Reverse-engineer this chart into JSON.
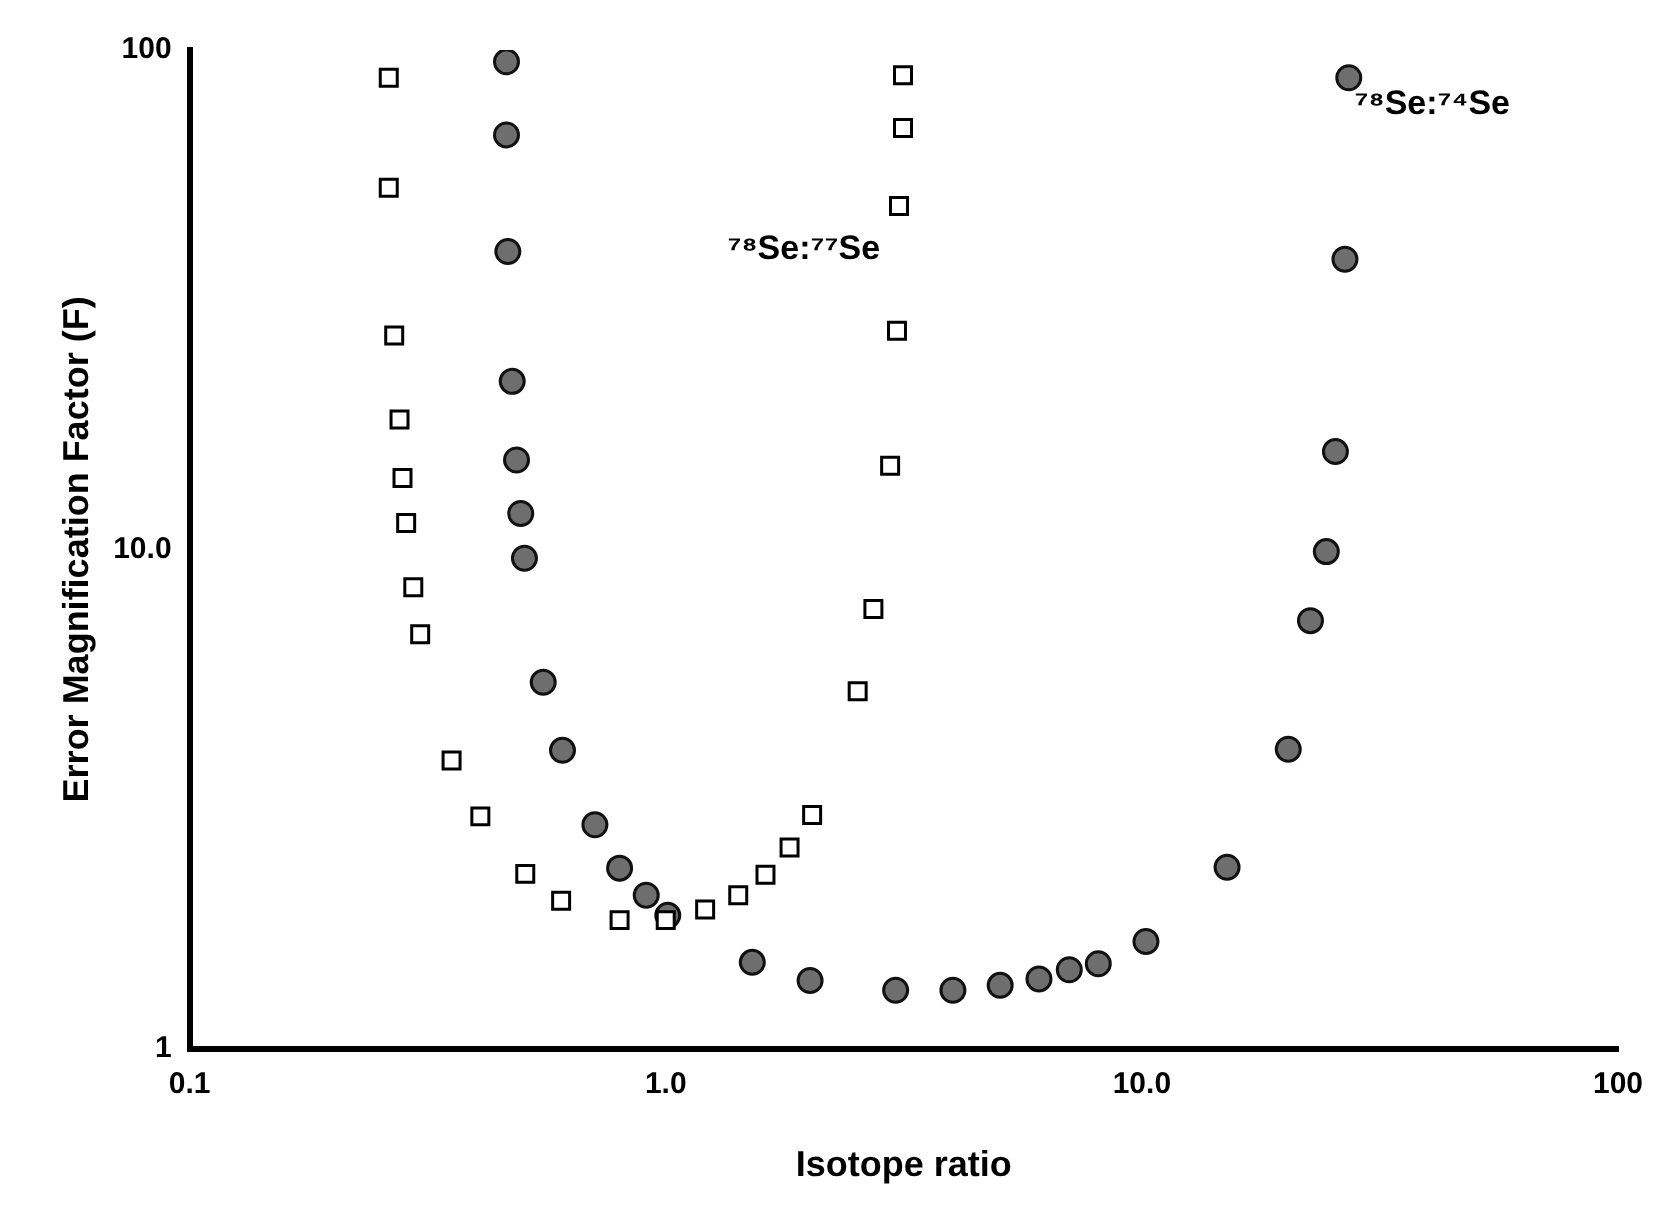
{
  "chart_data": {
    "type": "scatter",
    "xlabel": "Isotope ratio",
    "ylabel": "Error Magnification Factor (F)",
    "log": "xy",
    "grid": false,
    "legend": false,
    "xlim": [
      0.1,
      100
    ],
    "xticks": [
      {
        "value": 0.1,
        "label": "0.1"
      },
      {
        "value": 1,
        "label": "1.0"
      },
      {
        "value": 10,
        "label": "10.0"
      },
      100
    ],
    "ylim": [
      1,
      100
    ],
    "yticks": [
      1,
      {
        "value": 10,
        "label": "10.0"
      },
      100
    ],
    "series": [
      {
        "color": "#000000",
        "marker": "square",
        "x": [
          0.262,
          0.262,
          0.269,
          0.276,
          0.28,
          0.285,
          0.295,
          0.305,
          0.355,
          0.408,
          0.507,
          0.603,
          0.8,
          1.0,
          1.21,
          1.42,
          1.62,
          1.82,
          2.03,
          2.53,
          2.73,
          2.96,
          3.06,
          3.09,
          3.15,
          3.15
        ],
        "values": [
          88,
          53,
          26.8,
          18.2,
          13.9,
          11.3,
          8.4,
          6.76,
          3.78,
          2.92,
          2.24,
          1.98,
          1.81,
          1.81,
          1.9,
          2.03,
          2.23,
          2.53,
          2.94,
          5.2,
          7.6,
          14.7,
          27.4,
          48.7,
          69.8,
          89
        ]
      },
      {
        "color": "#6e6e6e",
        "marker": "circle",
        "x": [
          0.463,
          0.463,
          0.466,
          0.476,
          0.486,
          0.496,
          0.505,
          0.553,
          0.607,
          0.71,
          0.8,
          0.91,
          1.01,
          1.52,
          2.01,
          3.04,
          4.01,
          5.04,
          6.08,
          7.04,
          8.1,
          10.2,
          15.1,
          20.3,
          22.6,
          24.4,
          25.5,
          26.7,
          27.2
        ],
        "values": [
          94.7,
          67.6,
          39.5,
          21.7,
          15.1,
          11.8,
          9.6,
          5.42,
          3.96,
          2.81,
          2.3,
          2.03,
          1.85,
          1.49,
          1.37,
          1.31,
          1.31,
          1.34,
          1.38,
          1.44,
          1.48,
          1.64,
          2.31,
          3.98,
          7.2,
          9.9,
          15.7,
          38.1,
          88
        ]
      }
    ],
    "annotations": [
      "⁷⁸Se:⁷⁷Se",
      "⁷⁸Se:⁷⁴Se"
    ]
  }
}
